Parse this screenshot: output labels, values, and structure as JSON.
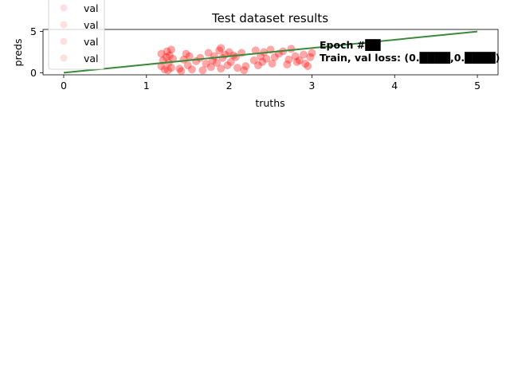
{
  "chart_data": {
    "type": "scatter",
    "title": "Test dataset results",
    "xlabel": "truths",
    "ylabel": "preds",
    "xlim": [
      -0.25,
      5.25
    ],
    "ylim": [
      -0.25,
      5.25
    ],
    "xticks": [
      "0",
      "1",
      "2",
      "3",
      "4",
      "5"
    ],
    "yticks": [
      "0",
      "5"
    ],
    "grid": false,
    "legend": {
      "placement": "upper-left",
      "entries": [
        "val",
        "val",
        "val",
        "val"
      ]
    },
    "annotations": {
      "epoch": "Epoch #██",
      "loss": "Train, val loss: (0.████,0.████)"
    },
    "series": [
      {
        "name": "val",
        "kind": "scatter",
        "color": "#ff0000",
        "x": [
          1.18,
          1.18,
          1.2,
          1.22,
          1.24,
          1.25,
          1.26,
          1.27,
          1.28,
          1.3,
          1.3,
          1.32,
          1.4,
          1.42,
          1.45,
          1.48,
          1.5,
          1.52,
          1.55,
          1.6,
          1.65,
          1.68,
          1.72,
          1.75,
          1.78,
          1.8,
          1.82,
          1.85,
          1.88,
          1.9,
          1.9,
          1.92,
          1.95,
          1.98,
          2.0,
          2.02,
          2.05,
          2.08,
          2.1,
          2.15,
          2.18,
          2.2,
          2.3,
          2.32,
          2.35,
          2.38,
          2.4,
          2.42,
          2.45,
          2.5,
          2.52,
          2.55,
          2.6,
          2.65,
          2.7,
          2.72,
          2.75,
          2.8,
          2.82,
          2.85,
          2.9,
          2.92,
          2.95,
          2.98,
          3.0
        ],
        "y": [
          2.3,
          0.8,
          1.5,
          0.4,
          1.9,
          2.6,
          0.3,
          1.2,
          2.1,
          2.8,
          0.6,
          1.7,
          0.5,
          0.2,
          1.6,
          2.3,
          0.9,
          2.0,
          0.4,
          1.4,
          1.8,
          0.3,
          1.1,
          2.4,
          0.7,
          1.5,
          2.0,
          1.2,
          2.7,
          0.5,
          3.0,
          1.8,
          2.2,
          0.9,
          2.5,
          1.3,
          2.1,
          1.9,
          0.6,
          2.4,
          0.3,
          0.8,
          1.5,
          2.7,
          0.9,
          2.0,
          1.3,
          2.5,
          1.7,
          2.8,
          1.1,
          1.9,
          2.3,
          2.6,
          1.0,
          1.6,
          2.9,
          2.0,
          1.3,
          1.5,
          2.2,
          1.1,
          0.8,
          1.9,
          2.4
        ]
      },
      {
        "name": "val",
        "kind": "line",
        "color": "#3a8a3a",
        "x": [
          0,
          5
        ],
        "y": [
          0,
          5
        ]
      }
    ]
  }
}
